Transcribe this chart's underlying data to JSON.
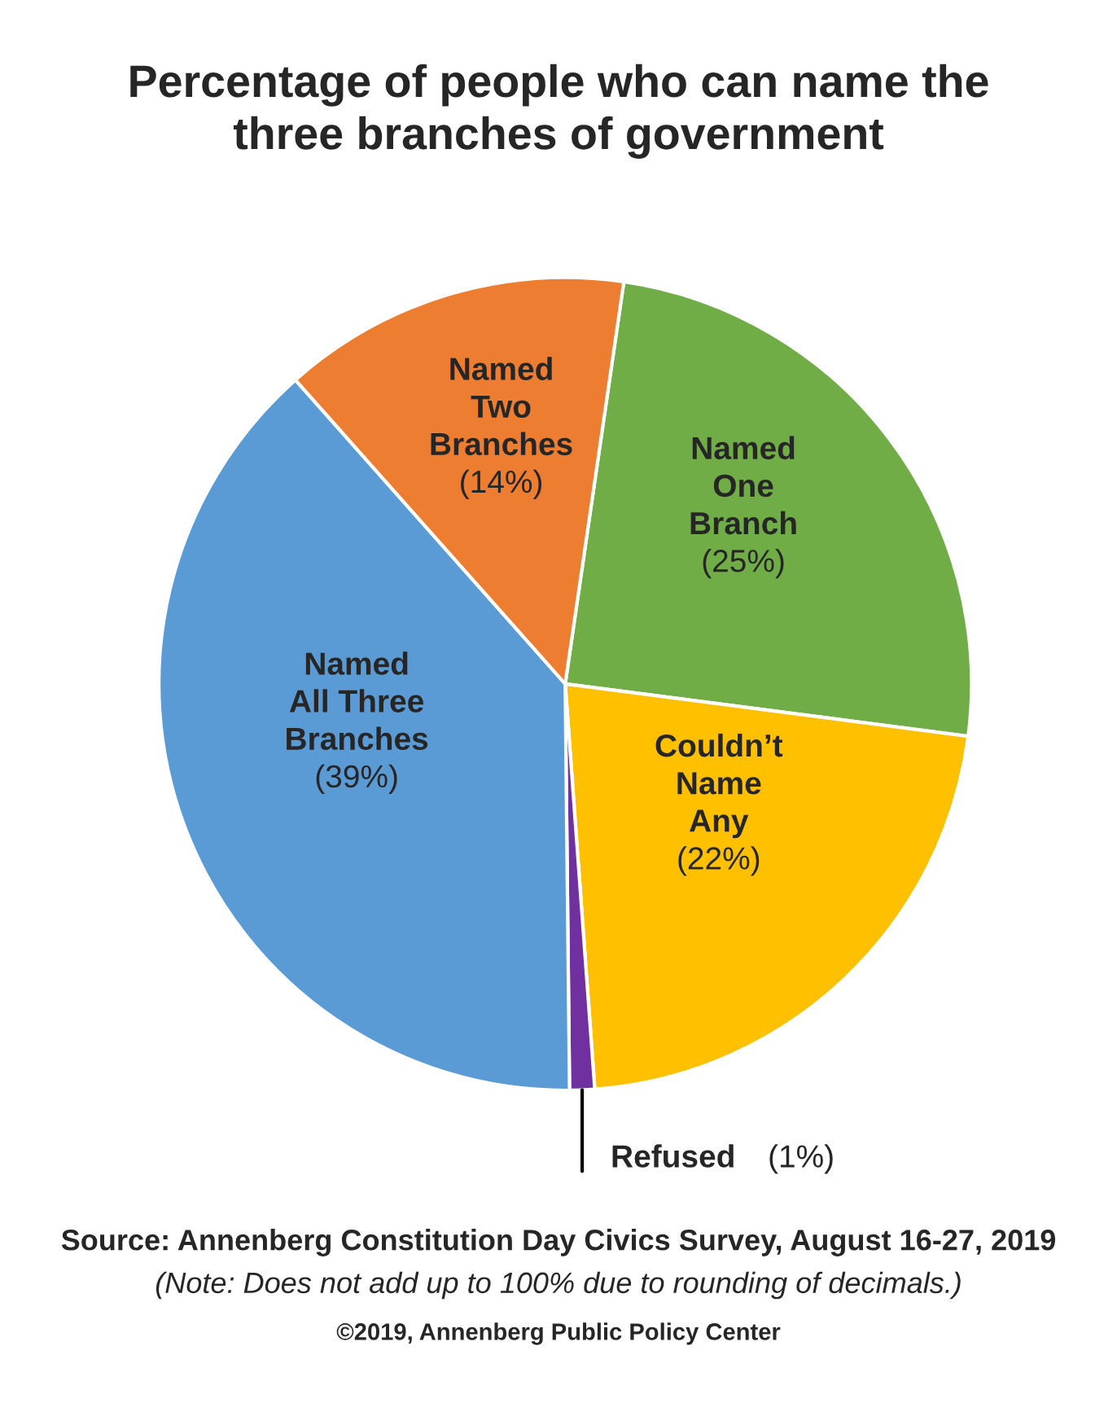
{
  "chart_data": {
    "type": "pie",
    "title": "Percentage of people who can name the\nthree branches of government",
    "categories": [
      "Named\nOne\nBranch",
      "Couldn’t\nName\nAny",
      "Refused",
      "Named\nAll Three\nBranches",
      "Named\nTwo\nBranches"
    ],
    "values": [
      25,
      22,
      1,
      39,
      14
    ],
    "value_labels": [
      "(25%)",
      "(22%)",
      "(1%)",
      "(39%)",
      "(14%)"
    ],
    "colors": [
      "#70ad47",
      "#ffc000",
      "#7030a0",
      "#5b9bd5",
      "#ed7d31"
    ],
    "annotations": [
      "Source: Annenberg Constitution Day Civics Survey, August 16-27, 2019",
      "(Note: Does not add up to 100% due to rounding of decimals.)",
      "©2019, Annenberg Public Policy Center"
    ]
  }
}
